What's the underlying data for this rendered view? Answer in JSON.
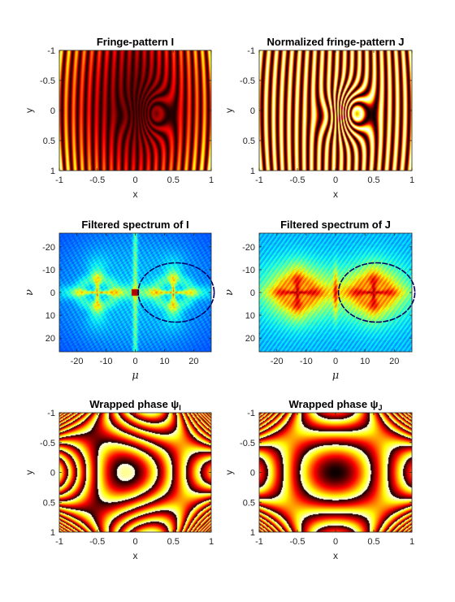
{
  "chart_data": [
    {
      "type": "heatmap",
      "title": "Fringe-pattern I",
      "xlabel": "x",
      "ylabel": "y",
      "xlim": [
        -1,
        1
      ],
      "ylim": [
        -1,
        1
      ],
      "y_reversed": true,
      "xticks": [
        "-1",
        "-0.5",
        "0",
        "0.5",
        "1"
      ],
      "yticks": [
        "-1",
        "-0.5",
        "0",
        "0.5",
        "1"
      ],
      "colormap": "hot",
      "content": "fringe-intensity"
    },
    {
      "type": "heatmap",
      "title": "Normalized fringe-pattern J",
      "xlabel": "x",
      "ylabel": "y",
      "xlim": [
        -1,
        1
      ],
      "ylim": [
        -1,
        1
      ],
      "y_reversed": true,
      "xticks": [
        "-1",
        "-0.5",
        "0",
        "0.5",
        "1"
      ],
      "yticks": [
        "-1",
        "-0.5",
        "0",
        "0.5",
        "1"
      ],
      "colormap": "hot",
      "content": "fringe-normalized"
    },
    {
      "type": "heatmap",
      "title": "Filtered spectrum of I",
      "xlabel": "μ",
      "ylabel": "ν",
      "xlim": [
        -26,
        26
      ],
      "ylim": [
        -26,
        26
      ],
      "y_reversed": true,
      "xticks": [
        "-20",
        "-10",
        "0",
        "10",
        "20"
      ],
      "yticks": [
        "-20",
        "-10",
        "0",
        "10",
        "20"
      ],
      "colormap": "jet",
      "content": "spectrum-I",
      "filter_circle": {
        "center": [
          14,
          0
        ],
        "radius": 13
      }
    },
    {
      "type": "heatmap",
      "title": "Filtered spectrum of J",
      "xlabel": "μ",
      "ylabel": "ν",
      "xlim": [
        -26,
        26
      ],
      "ylim": [
        -26,
        26
      ],
      "y_reversed": true,
      "xticks": [
        "-20",
        "-10",
        "0",
        "10",
        "20"
      ],
      "yticks": [
        "-20",
        "-10",
        "0",
        "10",
        "20"
      ],
      "colormap": "jet",
      "content": "spectrum-J",
      "filter_circle": {
        "center": [
          14,
          0
        ],
        "radius": 13
      }
    },
    {
      "type": "heatmap",
      "title": "Wrapped phase ψ",
      "title_subscript": "I",
      "xlabel": "x",
      "ylabel": "y",
      "xlim": [
        -1,
        1
      ],
      "ylim": [
        -1,
        1
      ],
      "y_reversed": true,
      "xticks": [
        "-1",
        "-0.5",
        "0",
        "0.5",
        "1"
      ],
      "yticks": [
        "-1",
        "-0.5",
        "0",
        "0.5",
        "1"
      ],
      "colormap": "hot",
      "content": "phase-I"
    },
    {
      "type": "heatmap",
      "title": "Wrapped phase ψ",
      "title_subscript": "J",
      "xlabel": "x",
      "ylabel": "y",
      "xlim": [
        -1,
        1
      ],
      "ylim": [
        -1,
        1
      ],
      "y_reversed": true,
      "xticks": [
        "-1",
        "-0.5",
        "0",
        "0.5",
        "1"
      ],
      "yticks": [
        "-1",
        "-0.5",
        "0",
        "0.5",
        "1"
      ],
      "colormap": "hot",
      "content": "phase-J"
    }
  ]
}
